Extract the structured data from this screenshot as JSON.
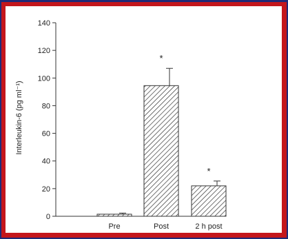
{
  "chart_data": {
    "type": "bar",
    "categories": [
      "Pre",
      "Post",
      "2 h post"
    ],
    "values": [
      1.5,
      94.5,
      22
    ],
    "errors": [
      0.8,
      12.5,
      3.5
    ],
    "significance": [
      "",
      "*",
      "*"
    ],
    "ylabel": "Interleukin-6 (pg ml⁻¹)",
    "xlabel": "",
    "ylim": [
      0,
      140
    ],
    "yticks": [
      0,
      20,
      40,
      60,
      80,
      100,
      120,
      140
    ],
    "bar_pattern": "diagonal-hatch",
    "grid": false
  },
  "colors": {
    "background": "#1f2a78",
    "border": "#c4161c",
    "panel": "#ffffff",
    "bar_fill": "#ffffff",
    "hatch": "#333333"
  }
}
